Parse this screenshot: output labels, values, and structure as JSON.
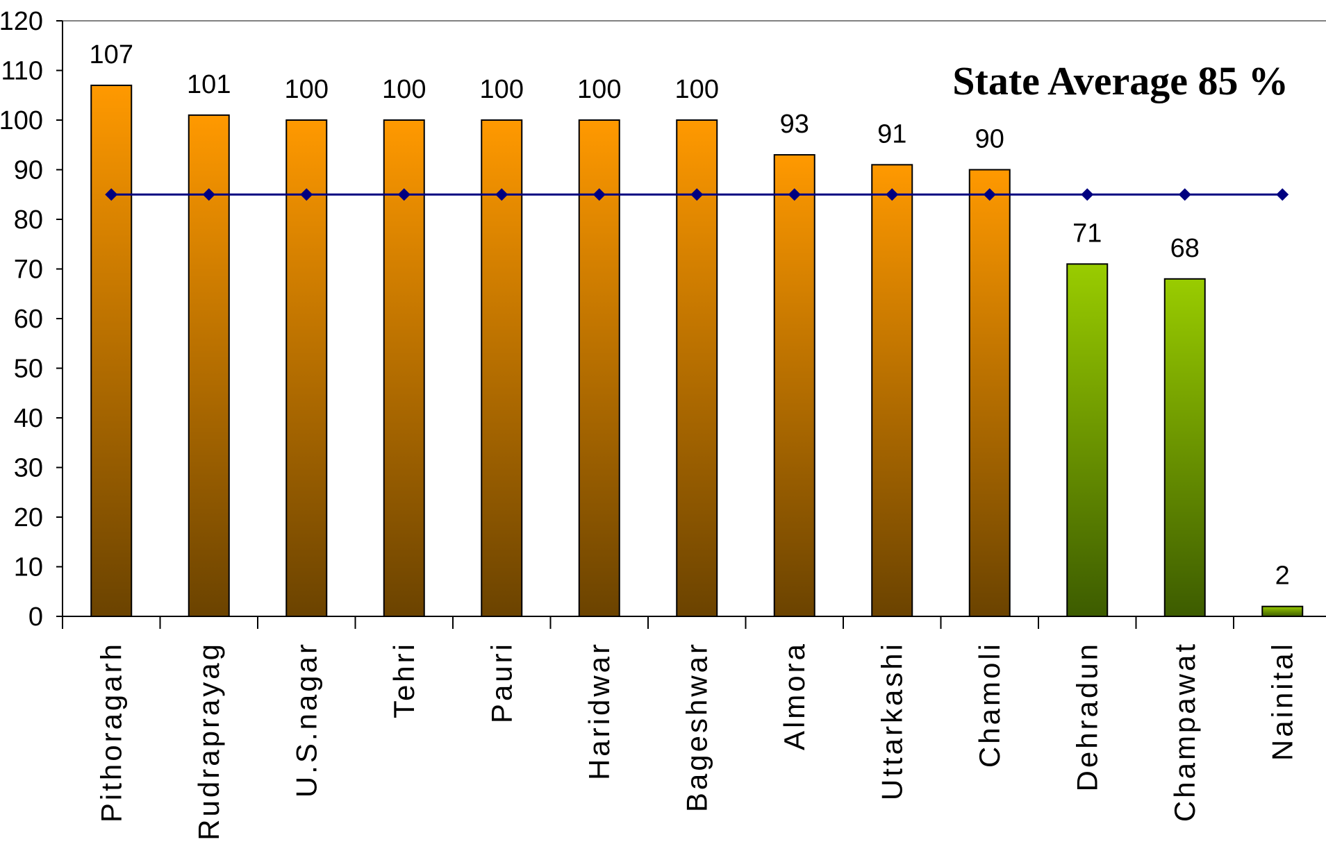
{
  "chart_data": {
    "type": "bar",
    "title": "",
    "xlabel": "",
    "ylabel": "",
    "ylim": [
      0,
      120
    ],
    "yticks": [
      0,
      10,
      20,
      30,
      40,
      50,
      60,
      70,
      80,
      90,
      100,
      110,
      120
    ],
    "grid": false,
    "legend": "none",
    "categories": [
      "Pithoragarh",
      "Rudraprayag",
      "U.S.nagar",
      "Tehri",
      "Pauri",
      "Haridwar",
      "Bageshwar",
      "Almora",
      "Uttarkashi",
      "Chamoli",
      "Dehradun",
      "Champawat",
      "Nainital"
    ],
    "series": [
      {
        "values": [
          107,
          101,
          100,
          100,
          100,
          100,
          100,
          93,
          91,
          90,
          71,
          68,
          2
        ],
        "data_labels": [
          "107",
          "101",
          "100",
          "100",
          "100",
          "100",
          "100",
          "93",
          "91",
          "90",
          "71",
          "68",
          "2"
        ],
        "highlight_colors": {
          "above_average": {
            "top": "#ff9900",
            "bottom": "#6b4300"
          },
          "below_average": {
            "top": "#99cc00",
            "bottom": "#3d5c00"
          }
        }
      },
      {
        "type": "line",
        "values": [
          85,
          85,
          85,
          85,
          85,
          85,
          85,
          85,
          85,
          85,
          85,
          85,
          85
        ],
        "color": "#000080",
        "marker": "diamond"
      }
    ],
    "annotation": "State Average 85 %",
    "average": 85
  }
}
